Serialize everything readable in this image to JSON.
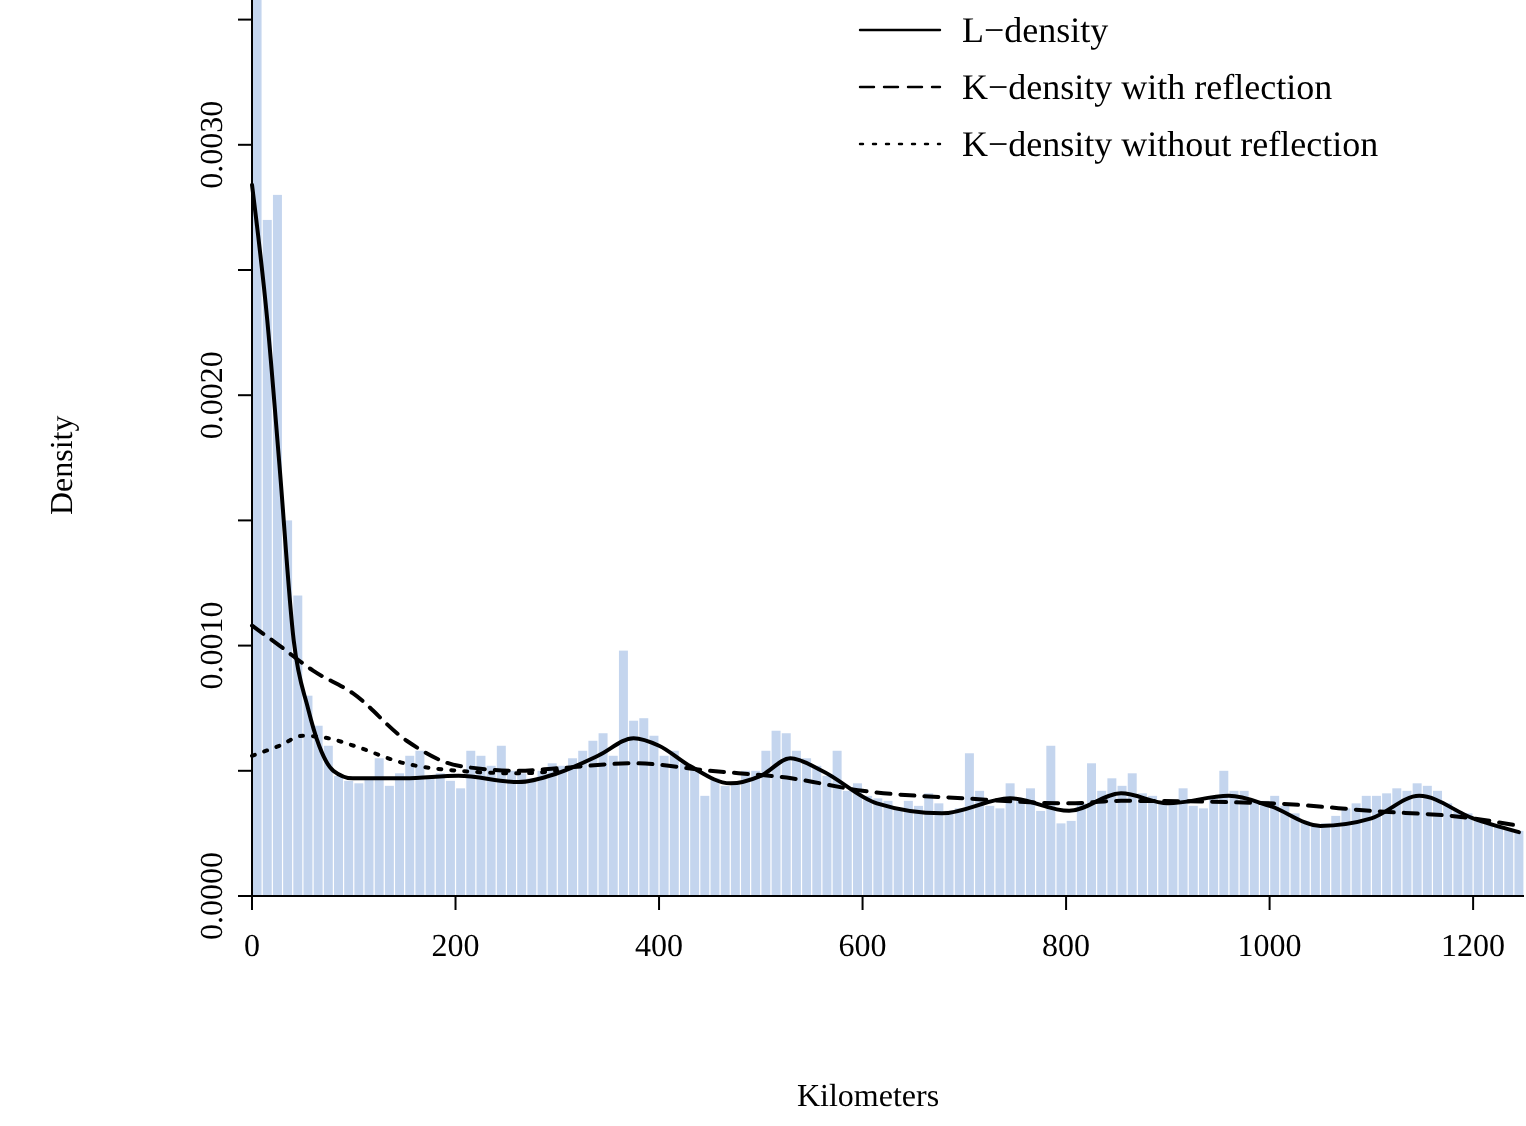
{
  "chart_data": {
    "type": "histogram",
    "xlabel": "Kilometers",
    "ylabel": "Density",
    "color": "#c4d5ee",
    "bins": [
      0,
      10,
      20,
      30,
      40,
      50,
      60,
      70,
      80,
      90,
      100,
      110,
      120,
      130,
      140,
      150,
      160,
      170,
      180,
      190,
      200,
      210,
      220,
      230,
      240,
      250,
      260,
      270,
      280,
      290,
      300,
      310,
      320,
      330,
      340,
      350,
      360,
      370,
      380,
      390,
      400,
      410,
      420,
      430,
      440,
      450,
      460,
      470,
      480,
      490,
      500,
      510,
      520,
      530,
      540,
      550,
      560,
      570,
      580,
      590,
      600,
      610,
      620,
      630,
      640,
      650,
      660,
      670,
      680,
      690,
      700,
      710,
      720,
      730,
      740,
      750,
      760,
      770,
      780,
      790,
      800,
      810,
      820,
      830,
      840,
      850,
      860,
      870,
      880,
      890,
      900,
      910,
      920,
      930,
      940,
      950,
      960,
      970,
      980,
      990,
      1000,
      1010,
      1020,
      1030,
      1040,
      1050,
      1060,
      1070,
      1080,
      1090,
      1100,
      1110,
      1120,
      1130,
      1140,
      1150,
      1160,
      1170,
      1180,
      1190,
      1200,
      1210,
      1220,
      1230,
      1240,
      1250
    ],
    "values": [
      0.0036,
      0.0027,
      0.0028,
      0.0015,
      0.0012,
      0.0008,
      0.00068,
      0.0006,
      0.00048,
      0.00046,
      0.00045,
      0.00047,
      0.00055,
      0.00044,
      0.00049,
      0.00056,
      0.00058,
      0.00048,
      0.00049,
      0.00046,
      0.00043,
      0.00058,
      0.00056,
      0.00052,
      0.0006,
      0.0005,
      0.00049,
      0.00047,
      0.0005,
      0.00053,
      0.00052,
      0.00055,
      0.00058,
      0.00062,
      0.00065,
      0.00056,
      0.00098,
      0.0007,
      0.00071,
      0.00064,
      0.00056,
      0.00058,
      0.00053,
      0.00051,
      0.0004,
      0.00047,
      0.00044,
      0.00045,
      0.0005,
      0.0005,
      0.00058,
      0.00066,
      0.00065,
      0.00058,
      0.00055,
      0.00052,
      0.00048,
      0.00058,
      0.00042,
      0.00045,
      0.0004,
      0.00039,
      0.00038,
      0.00035,
      0.00038,
      0.00036,
      0.00041,
      0.00037,
      0.00034,
      0.00035,
      0.00057,
      0.00042,
      0.00036,
      0.00035,
      0.00045,
      0.00038,
      0.00043,
      0.00034,
      0.0006,
      0.00029,
      0.0003,
      0.00037,
      0.00053,
      0.00042,
      0.00047,
      0.00044,
      0.00049,
      0.00041,
      0.0004,
      0.00037,
      0.00038,
      0.00043,
      0.00036,
      0.00035,
      0.00039,
      0.0005,
      0.00042,
      0.00042,
      0.00038,
      0.00038,
      0.0004,
      0.00036,
      0.00033,
      0.0003,
      0.00028,
      0.00029,
      0.00032,
      0.00035,
      0.00037,
      0.0004,
      0.0004,
      0.00041,
      0.00043,
      0.00042,
      0.00045,
      0.00044,
      0.00042,
      0.00037,
      0.00034,
      0.00033,
      0.00031,
      0.00029,
      0.00028,
      0.00027,
      0.00026
    ],
    "series": [
      {
        "name": "L−density",
        "type": "line",
        "color": "#000000",
        "line_style": "solid",
        "x": [
          0,
          15,
          27,
          41,
          55,
          66,
          80,
          99,
          125,
          150,
          203,
          262,
          300,
          340,
          375,
          400,
          430,
          470,
          500,
          529,
          560,
          614,
          678,
          745,
          803,
          854,
          900,
          960,
          1000,
          1050,
          1100,
          1147,
          1200,
          1245
        ],
        "values": [
          0.00284,
          0.0023,
          0.00172,
          0.00102,
          0.00075,
          0.0006,
          0.0005,
          0.00047,
          0.00047,
          0.00047,
          0.00048,
          0.000455,
          0.00049,
          0.00056,
          0.00063,
          0.0006,
          0.00052,
          0.00045,
          0.00048,
          0.00055,
          0.0005,
          0.00037,
          0.00033,
          0.00039,
          0.00034,
          0.00041,
          0.00037,
          0.0004,
          0.00036,
          0.00028,
          0.00031,
          0.0004,
          0.00031,
          0.000255
        ]
      },
      {
        "name": "K−density with reflection",
        "type": "line",
        "color": "#000000",
        "line_style": "dashed",
        "x": [
          0,
          27,
          60,
          99,
          152,
          203,
          262,
          300,
          375,
          450,
          530,
          600,
          700,
          803,
          854,
          1000,
          1100,
          1200,
          1245
        ],
        "values": [
          0.00108,
          0.001,
          0.0009,
          0.00081,
          0.00062,
          0.00052,
          0.0005,
          0.00051,
          0.00053,
          0.0005,
          0.00047,
          0.00042,
          0.00039,
          0.00037,
          0.00038,
          0.00037,
          0.00034,
          0.00031,
          0.00028
        ]
      },
      {
        "name": "K−density without reflection",
        "type": "line",
        "color": "#000000",
        "line_style": "dotted",
        "x": [
          0,
          27,
          50,
          75,
          100,
          150,
          203,
          262,
          300
        ],
        "values": [
          0.00056,
          0.0006,
          0.00064,
          0.00063,
          0.0006,
          0.00053,
          0.0005,
          0.00049,
          0.0005
        ]
      }
    ],
    "xlim": [
      0,
      1250
    ],
    "xticks": [
      0,
      200,
      400,
      600,
      800,
      1000,
      1200
    ],
    "ylim": [
      0,
      0.0036
    ],
    "yticks": [
      {
        "value": 0,
        "label": "0.0000"
      },
      {
        "value": 0.0005,
        "label": null
      },
      {
        "value": 0.001,
        "label": "0.0010"
      },
      {
        "value": 0.0015,
        "label": null
      },
      {
        "value": 0.002,
        "label": "0.0020"
      },
      {
        "value": 0.0025,
        "label": null
      },
      {
        "value": 0.003,
        "label": "0.0030"
      },
      {
        "value": 0.0035,
        "label": null
      }
    ],
    "legend": "top right",
    "grid": false
  }
}
